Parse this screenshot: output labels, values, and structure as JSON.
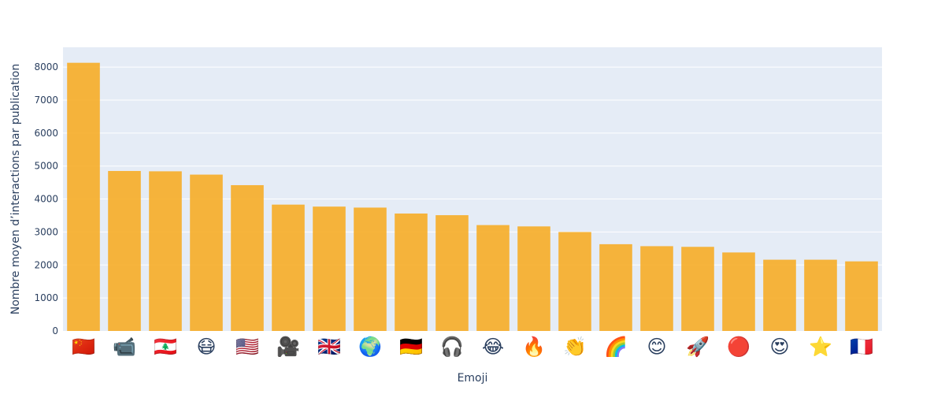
{
  "chart_data": {
    "type": "bar",
    "xlabel": "Emoji",
    "ylabel": "Nombre moyen d’interactions par publication",
    "ylim": [
      0,
      8600
    ],
    "yticks": [
      0,
      1000,
      2000,
      3000,
      4000,
      5000,
      6000,
      7000,
      8000
    ],
    "grid": true,
    "bar_color": "#f6ad27",
    "plot_background": "#e5ecf6",
    "categories": [
      "🇨🇳",
      "📹",
      "🇱🇧",
      "😷",
      "🇺🇸",
      "🎥",
      "🇬🇧",
      "🌍",
      "🇩🇪",
      "🎧",
      "😂",
      "🔥",
      "👏",
      "🌈",
      "😊",
      "🚀",
      "🔴",
      "😍",
      "⭐",
      "🇫🇷"
    ],
    "values": [
      8130,
      4850,
      4840,
      4740,
      4420,
      3830,
      3770,
      3740,
      3560,
      3510,
      3210,
      3170,
      3000,
      2630,
      2570,
      2550,
      2380,
      2160,
      2160,
      2110
    ]
  }
}
